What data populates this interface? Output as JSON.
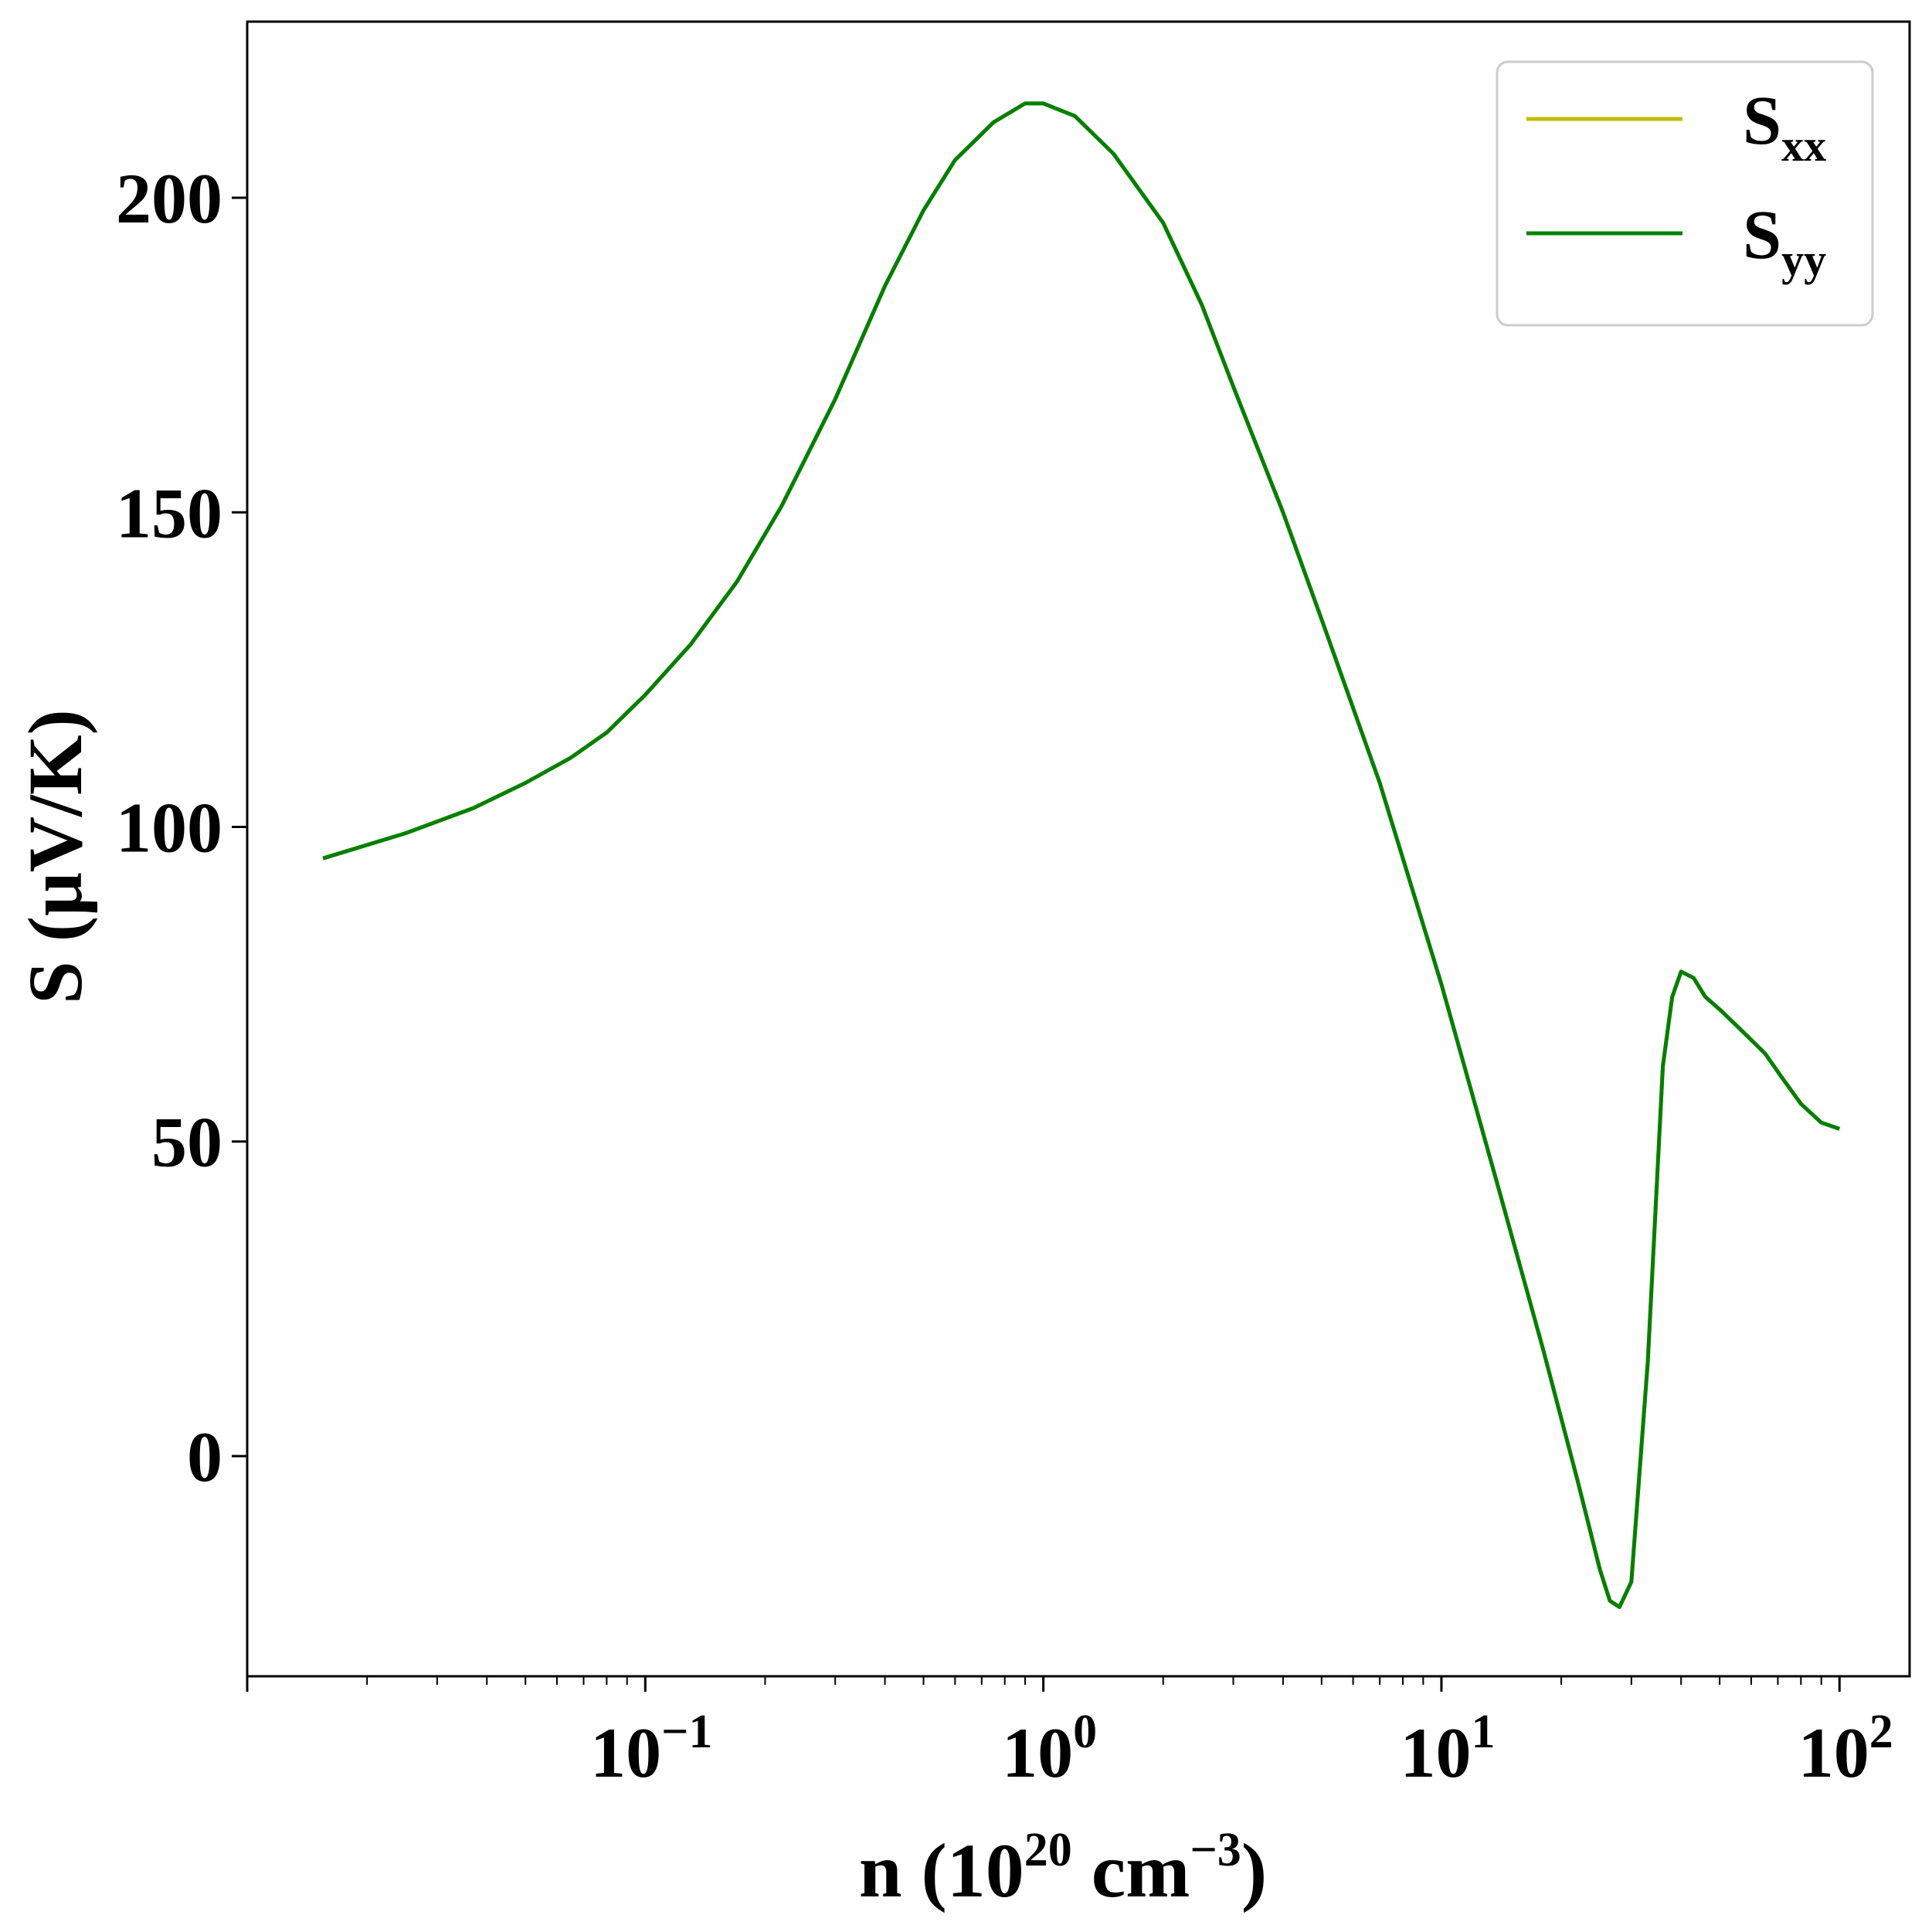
{
  "chart_data": {
    "type": "line",
    "xscale": "log",
    "xlim": [
      0.01,
      150
    ],
    "ylim": [
      -35,
      228
    ],
    "xlabel": {
      "base": "n (10",
      "exp1": "20",
      "mid": " cm",
      "exp2": "−3",
      "end": ")"
    },
    "ylabel": "S (μV/K)",
    "grid": false,
    "legend_position": "top-right",
    "x_ticks": [
      {
        "value": 0.1,
        "base": "10",
        "exp": "−1"
      },
      {
        "value": 1,
        "base": "10",
        "exp": "0"
      },
      {
        "value": 10,
        "base": "10",
        "exp": "1"
      },
      {
        "value": 100,
        "base": "10",
        "exp": "2"
      }
    ],
    "y_ticks": [
      {
        "value": 0,
        "label": "0"
      },
      {
        "value": 50,
        "label": "50"
      },
      {
        "value": 100,
        "label": "100"
      },
      {
        "value": 150,
        "label": "150"
      },
      {
        "value": 200,
        "label": "200"
      }
    ],
    "series": [
      {
        "name_base": "S",
        "name_sub": "xx",
        "color": "#bfbf00",
        "x": [
          0.0155,
          0.025,
          0.037,
          0.05,
          0.065,
          0.08,
          0.1,
          0.13,
          0.17,
          0.22,
          0.3,
          0.4,
          0.5,
          0.6,
          0.75,
          0.9,
          1.0,
          1.2,
          1.5,
          2.0,
          2.5,
          3.0,
          4.0,
          5.0,
          7.0,
          10.0,
          14.0,
          18.0,
          22.0,
          25.0,
          26.5,
          28.0,
          30.0,
          33.0,
          36.0,
          38.0,
          40.0,
          43.0,
          46.0,
          50.0,
          56.0,
          65.0,
          72.0,
          80.0,
          90.0,
          100.0
        ],
        "y": [
          95,
          99,
          103,
          107,
          111,
          115,
          121,
          129,
          139,
          151,
          168,
          186,
          198,
          206,
          212,
          215,
          215,
          213,
          207,
          196,
          183,
          170,
          150,
          133,
          107,
          75,
          42,
          17,
          -4,
          -18,
          -23,
          -24,
          -20,
          15,
          62,
          73,
          77,
          76,
          73,
          71,
          68,
          64,
          60,
          56,
          53,
          52
        ]
      },
      {
        "name_base": "S",
        "name_sub": "yy",
        "color": "#008000",
        "x": [
          0.0155,
          0.025,
          0.037,
          0.05,
          0.065,
          0.08,
          0.1,
          0.13,
          0.17,
          0.22,
          0.3,
          0.4,
          0.5,
          0.6,
          0.75,
          0.9,
          1.0,
          1.2,
          1.5,
          2.0,
          2.5,
          3.0,
          4.0,
          5.0,
          7.0,
          10.0,
          14.0,
          18.0,
          22.0,
          25.0,
          26.5,
          28.0,
          30.0,
          33.0,
          36.0,
          38.0,
          40.0,
          43.0,
          46.0,
          50.0,
          56.0,
          65.0,
          72.0,
          80.0,
          90.0,
          100.0
        ],
        "y": [
          95,
          99,
          103,
          107,
          111,
          115,
          121,
          129,
          139,
          151,
          168,
          186,
          198,
          206,
          212,
          215,
          215,
          213,
          207,
          196,
          183,
          170,
          150,
          133,
          107,
          75,
          42,
          17,
          -4,
          -18,
          -23,
          -24,
          -20,
          15,
          62,
          73,
          77,
          76,
          73,
          71,
          68,
          64,
          60,
          56,
          53,
          52
        ]
      }
    ]
  }
}
